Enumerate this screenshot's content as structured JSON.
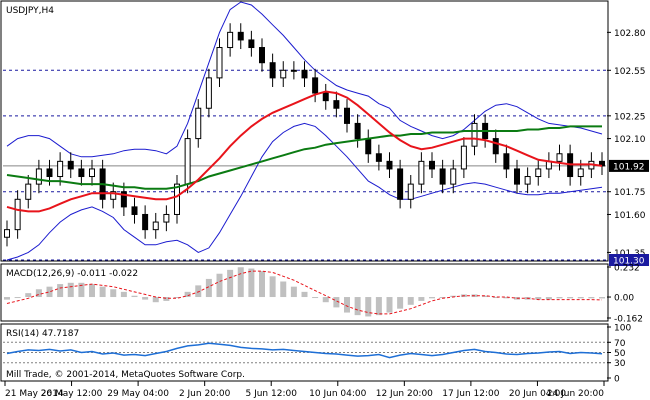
{
  "chart_data": [
    {
      "panel": "price",
      "type": "candlestick",
      "title": "USDJPY,H4",
      "y_ticks": [
        "102.80",
        "102.55",
        "102.25",
        "102.10",
        "101.92",
        "101.75",
        "101.60",
        "101.35",
        "101.30"
      ],
      "ylim": [
        101.3,
        103.0
      ],
      "levels": [
        102.55,
        102.25,
        101.75,
        101.3
      ],
      "current_price": "101.92",
      "colors": {
        "ma_fast": "#e8141b",
        "ma_slow": "#0b7b12",
        "bands": "#1c1ccf",
        "candles": "#000000",
        "levels": "#1a1aa0",
        "price_box": "#000000"
      },
      "series": [
        {
          "values": [
            101.5,
            101.7,
            101.8,
            101.9,
            101.85,
            101.95,
            101.9,
            101.85,
            101.9,
            101.7,
            101.75,
            101.65,
            101.6,
            101.5,
            101.55,
            101.6,
            101.8,
            102.1,
            102.3,
            102.5,
            102.7,
            102.8,
            102.75,
            102.7,
            102.6,
            102.5,
            102.55,
            102.55,
            102.5,
            102.4,
            102.35,
            102.3,
            102.2,
            102.1,
            102.0,
            101.95,
            101.9,
            101.7,
            101.8,
            101.95,
            101.9,
            101.8,
            101.9,
            102.05,
            102.2,
            102.1,
            102.0,
            101.9,
            101.8,
            101.85,
            101.9,
            101.95,
            102.0,
            101.85,
            101.9,
            101.95,
            101.92
          ]
        },
        {
          "values": [
            101.65,
            101.63,
            101.62,
            101.62,
            101.64,
            101.67,
            101.7,
            101.72,
            101.74,
            101.74,
            101.74,
            101.73,
            101.72,
            101.71,
            101.7,
            101.7,
            101.72,
            101.77,
            101.83,
            101.9,
            101.97,
            102.05,
            102.12,
            102.18,
            102.23,
            102.27,
            102.3,
            102.33,
            102.36,
            102.39,
            102.41,
            102.4,
            102.37,
            102.32,
            102.26,
            102.2,
            102.14,
            102.09,
            102.05,
            102.03,
            102.04,
            102.06,
            102.08,
            102.1,
            102.1,
            102.09,
            102.07,
            102.05,
            102.02,
            101.99,
            101.96,
            101.95,
            101.94,
            101.93,
            101.93,
            101.93,
            101.92
          ]
        },
        {
          "values": [
            101.86,
            101.85,
            101.84,
            101.83,
            101.82,
            101.82,
            101.81,
            101.8,
            101.8,
            101.8,
            101.79,
            101.78,
            101.78,
            101.77,
            101.77,
            101.77,
            101.78,
            101.8,
            101.82,
            101.85,
            101.87,
            101.89,
            101.91,
            101.93,
            101.95,
            101.97,
            101.99,
            102.01,
            102.03,
            102.04,
            102.06,
            102.07,
            102.08,
            102.09,
            102.1,
            102.11,
            102.12,
            102.12,
            102.13,
            102.13,
            102.14,
            102.14,
            102.14,
            102.15,
            102.15,
            102.15,
            102.15,
            102.15,
            102.15,
            102.16,
            102.16,
            102.17,
            102.17,
            102.18,
            102.18,
            102.18,
            102.18
          ]
        },
        {
          "values": [
            102.05,
            102.1,
            102.12,
            102.12,
            102.1,
            102.05,
            102.0,
            101.98,
            101.98,
            101.99,
            102.0,
            102.02,
            102.03,
            102.03,
            102.02,
            102.0,
            102.05,
            102.2,
            102.4,
            102.6,
            102.8,
            102.95,
            103.0,
            102.98,
            102.92,
            102.85,
            102.78,
            102.7,
            102.62,
            102.55,
            102.5,
            102.45,
            102.42,
            102.4,
            102.38,
            102.33,
            102.3,
            102.22,
            102.18,
            102.15,
            102.12,
            102.1,
            102.12,
            102.16,
            102.22,
            102.28,
            102.32,
            102.33,
            102.31,
            102.27,
            102.23,
            102.2,
            102.19,
            102.18,
            102.17,
            102.15,
            102.13
          ]
        },
        {
          "values": [
            101.3,
            101.32,
            101.35,
            101.4,
            101.48,
            101.55,
            101.6,
            101.63,
            101.65,
            101.62,
            101.58,
            101.5,
            101.45,
            101.4,
            101.4,
            101.42,
            101.43,
            101.4,
            101.35,
            101.38,
            101.48,
            101.6,
            101.72,
            101.85,
            101.98,
            102.08,
            102.14,
            102.18,
            102.2,
            102.18,
            102.12,
            102.05,
            101.98,
            101.9,
            101.82,
            101.78,
            101.73,
            101.7,
            101.7,
            101.72,
            101.74,
            101.76,
            101.78,
            101.8,
            101.81,
            101.8,
            101.78,
            101.76,
            101.74,
            101.73,
            101.73,
            101.74,
            101.74,
            101.75,
            101.76,
            101.77,
            101.78
          ]
        }
      ]
    },
    {
      "panel": "macd",
      "type": "histogram",
      "title": "MACD(12,26,9) -0.011 -0.022",
      "y_ticks": [
        "0.232",
        "0.00",
        "-0.162"
      ],
      "ylim": [
        -0.162,
        0.232
      ],
      "colors": {
        "histogram": "#c0c0c0",
        "signal": "#e8141b"
      },
      "series": [
        {
          "values": [
            -0.02,
            0.0,
            0.03,
            0.06,
            0.08,
            0.1,
            0.11,
            0.11,
            0.1,
            0.08,
            0.06,
            0.04,
            0.01,
            -0.02,
            -0.04,
            -0.03,
            0.0,
            0.04,
            0.09,
            0.14,
            0.18,
            0.21,
            0.23,
            0.22,
            0.2,
            0.16,
            0.12,
            0.08,
            0.04,
            0.0,
            -0.04,
            -0.08,
            -0.12,
            -0.14,
            -0.15,
            -0.14,
            -0.12,
            -0.09,
            -0.06,
            -0.03,
            -0.01,
            0.0,
            0.01,
            0.02,
            0.02,
            0.01,
            0.0,
            -0.01,
            -0.02,
            -0.02,
            -0.02,
            -0.02,
            -0.01,
            -0.01,
            -0.01,
            -0.01,
            -0.011
          ]
        },
        {
          "values": [
            -0.05,
            -0.03,
            -0.01,
            0.02,
            0.04,
            0.07,
            0.08,
            0.09,
            0.1,
            0.09,
            0.08,
            0.06,
            0.04,
            0.02,
            0.0,
            -0.01,
            -0.01,
            0.01,
            0.04,
            0.08,
            0.12,
            0.15,
            0.18,
            0.2,
            0.2,
            0.19,
            0.16,
            0.13,
            0.09,
            0.05,
            0.01,
            -0.03,
            -0.07,
            -0.1,
            -0.12,
            -0.13,
            -0.13,
            -0.11,
            -0.09,
            -0.06,
            -0.03,
            -0.01,
            0.0,
            0.01,
            0.01,
            0.01,
            0.0,
            0.0,
            -0.01,
            -0.01,
            -0.02,
            -0.02,
            -0.02,
            -0.02,
            -0.02,
            -0.02,
            -0.022
          ]
        }
      ]
    },
    {
      "panel": "rsi",
      "type": "line",
      "title": "RSI(14) 47.7187",
      "y_ticks": [
        "100",
        "70",
        "50",
        "30",
        "0"
      ],
      "ylim": [
        0,
        100
      ],
      "levels": [
        70,
        50,
        30
      ],
      "colors": {
        "line": "#1e6fd6",
        "levels": "#808080"
      },
      "series": [
        {
          "values": [
            48,
            52,
            55,
            54,
            56,
            53,
            55,
            50,
            52,
            47,
            49,
            45,
            46,
            44,
            48,
            52,
            58,
            63,
            65,
            68,
            66,
            64,
            60,
            58,
            57,
            55,
            56,
            54,
            52,
            50,
            48,
            47,
            45,
            43,
            44,
            46,
            40,
            45,
            48,
            46,
            44,
            46,
            50,
            54,
            56,
            52,
            50,
            47,
            46,
            48,
            49,
            51,
            52,
            48,
            50,
            49,
            47.7187
          ]
        }
      ]
    }
  ],
  "x_labels": [
    "21 May 2014",
    "26 May 12:00",
    "29 May 04:00",
    "2 Jun 20:00",
    "5 Jun 12:00",
    "10 Jun 04:00",
    "12 Jun 20:00",
    "17 Jun 12:00",
    "20 Jun 04:00",
    "24 Jun 20:00"
  ],
  "footer": "Mill Trade, © 2001-2014, MetaQuotes Software Corp."
}
